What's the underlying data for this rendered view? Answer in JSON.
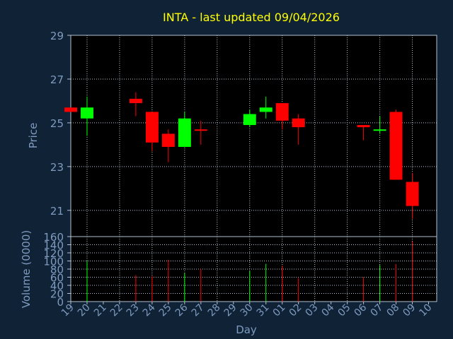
{
  "chart_data": [
    {
      "type": "candlestick",
      "panel": "price",
      "title": "INTA - last updated 09/04/2026",
      "ylabel": "Price",
      "ylim": [
        19.8,
        29
      ],
      "yticks": [
        "29",
        "27",
        "25",
        "23",
        "21"
      ],
      "grid": true,
      "categories": [
        "19",
        "20",
        "21",
        "22",
        "23",
        "24",
        "25",
        "26",
        "27",
        "28",
        "29",
        "30",
        "31",
        "01",
        "02",
        "03",
        "04",
        "05",
        "06",
        "07",
        "08",
        "09",
        "10"
      ],
      "candles": [
        {
          "day": "19",
          "open": 25.7,
          "high": 25.7,
          "low": 25.5,
          "close": 25.5,
          "color": "red"
        },
        {
          "day": "20",
          "open": 25.2,
          "high": 26.2,
          "low": 24.4,
          "close": 25.7,
          "color": "green"
        },
        {
          "day": "23",
          "open": 26.1,
          "high": 26.4,
          "low": 25.3,
          "close": 25.9,
          "color": "red"
        },
        {
          "day": "24",
          "open": 25.5,
          "high": 25.5,
          "low": 23.7,
          "close": 24.1,
          "color": "red"
        },
        {
          "day": "25",
          "open": 24.5,
          "high": 24.7,
          "low": 23.2,
          "close": 23.9,
          "color": "red"
        },
        {
          "day": "26",
          "open": 23.9,
          "high": 25.5,
          "low": 23.9,
          "close": 25.2,
          "color": "green"
        },
        {
          "day": "27",
          "open": 24.7,
          "high": 25.1,
          "low": 24.0,
          "close": 24.7,
          "color": "red"
        },
        {
          "day": "30",
          "open": 24.9,
          "high": 25.6,
          "low": 24.8,
          "close": 25.4,
          "color": "green"
        },
        {
          "day": "31",
          "open": 25.5,
          "high": 26.2,
          "low": 25.2,
          "close": 25.7,
          "color": "green"
        },
        {
          "day": "01",
          "open": 25.9,
          "high": 25.9,
          "low": 24.7,
          "close": 25.1,
          "color": "red"
        },
        {
          "day": "02",
          "open": 25.2,
          "high": 25.4,
          "low": 24.0,
          "close": 24.8,
          "color": "red"
        },
        {
          "day": "06",
          "open": 24.9,
          "high": 24.9,
          "low": 24.2,
          "close": 24.8,
          "color": "red"
        },
        {
          "day": "07",
          "open": 24.7,
          "high": 25.3,
          "low": 24.5,
          "close": 24.7,
          "color": "green"
        },
        {
          "day": "08",
          "open": 25.5,
          "high": 25.6,
          "low": 22.4,
          "close": 22.4,
          "color": "red"
        },
        {
          "day": "09",
          "open": 22.3,
          "high": 22.7,
          "low": 20.6,
          "close": 21.2,
          "color": "red"
        }
      ]
    },
    {
      "type": "bar",
      "panel": "volume",
      "ylabel": "Volume (0000)",
      "xlabel": "Day",
      "ylim": [
        0,
        160
      ],
      "yticks": [
        "160",
        "140",
        "120",
        "100",
        "80",
        "60",
        "40",
        "20",
        "0"
      ],
      "categories": [
        "19",
        "20",
        "21",
        "22",
        "23",
        "24",
        "25",
        "26",
        "27",
        "28",
        "29",
        "30",
        "31",
        "01",
        "02",
        "03",
        "04",
        "05",
        "06",
        "07",
        "08",
        "09",
        "10"
      ],
      "bars": [
        {
          "day": "20",
          "value": 100,
          "color": "green"
        },
        {
          "day": "23",
          "value": 65,
          "color": "red"
        },
        {
          "day": "24",
          "value": 63,
          "color": "red"
        },
        {
          "day": "25",
          "value": 103,
          "color": "red"
        },
        {
          "day": "26",
          "value": 70,
          "color": "green"
        },
        {
          "day": "27",
          "value": 80,
          "color": "red"
        },
        {
          "day": "30",
          "value": 75,
          "color": "green"
        },
        {
          "day": "31",
          "value": 93,
          "color": "green"
        },
        {
          "day": "01",
          "value": 88,
          "color": "red"
        },
        {
          "day": "02",
          "value": 58,
          "color": "red"
        },
        {
          "day": "06",
          "value": 60,
          "color": "red"
        },
        {
          "day": "07",
          "value": 90,
          "color": "green"
        },
        {
          "day": "08",
          "value": 92,
          "color": "red"
        },
        {
          "day": "09",
          "value": 148,
          "color": "red"
        }
      ]
    }
  ],
  "colors": {
    "background": "#0f2236",
    "plot_background": "#000000",
    "grid": "#b5c1d1",
    "text": "#7f9bc0",
    "title": "#ffff00",
    "up": "#00ff00",
    "down": "#ff0000"
  }
}
